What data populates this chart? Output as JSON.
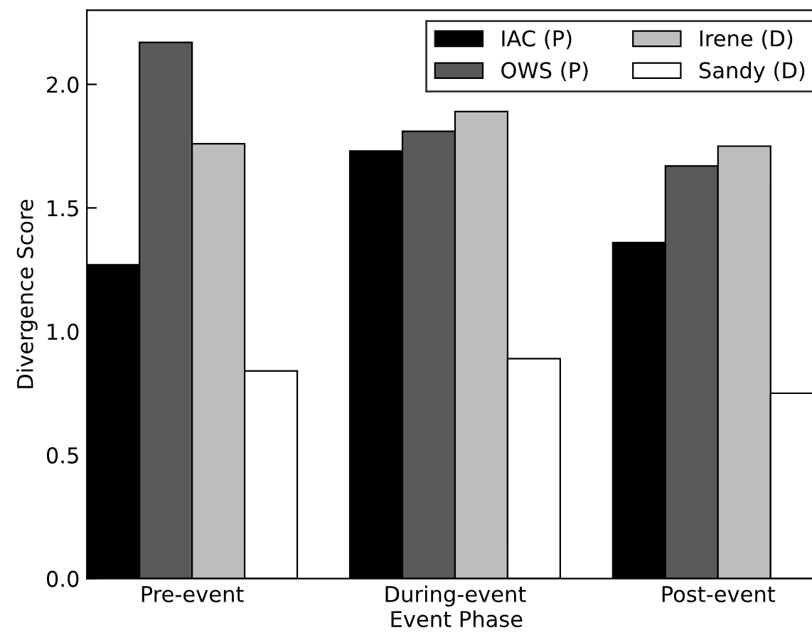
{
  "chart_data": {
    "type": "bar",
    "xlabel": "Event Phase",
    "ylabel": "Divergence Score",
    "categories": [
      "Pre-event",
      "During-event",
      "Post-event"
    ],
    "series": [
      {
        "name": "IAC (P)",
        "color": "#000000",
        "values": [
          1.27,
          1.73,
          1.36
        ]
      },
      {
        "name": "OWS (P)",
        "color": "#595959",
        "values": [
          2.17,
          1.81,
          1.67
        ]
      },
      {
        "name": "Irene (D)",
        "color": "#bdbdbd",
        "values": [
          1.76,
          1.89,
          1.75
        ]
      },
      {
        "name": "Sandy (D)",
        "color": "#ffffff",
        "values": [
          0.84,
          0.89,
          0.75
        ]
      }
    ],
    "ylim": [
      0,
      2.3
    ],
    "yticks": [
      {
        "value": 0,
        "label": "0.0"
      },
      {
        "value": 0.5,
        "label": "0.5"
      },
      {
        "value": 1,
        "label": "1.0"
      },
      {
        "value": 1.5,
        "label": "1.5"
      },
      {
        "value": 2,
        "label": "2.0"
      }
    ],
    "grid": false,
    "legend": "top right"
  }
}
